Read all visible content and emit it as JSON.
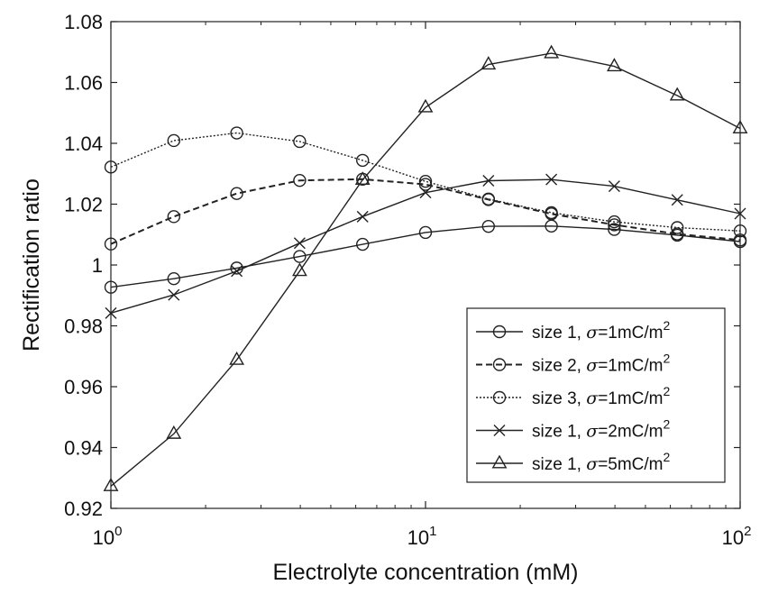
{
  "chart_data": {
    "type": "line",
    "xscale": "log",
    "xlabel": "Electrolyte concentration (mM)",
    "ylabel": "Rectification ratio",
    "xlim": [
      1,
      100
    ],
    "ylim": [
      0.92,
      1.08
    ],
    "x_ticks": [
      {
        "value": 1,
        "base": "10",
        "exp": "0"
      },
      {
        "value": 10,
        "base": "10",
        "exp": "1"
      },
      {
        "value": 100,
        "base": "10",
        "exp": "2"
      }
    ],
    "y_ticks": [
      {
        "value": 0.92,
        "label": "0.92"
      },
      {
        "value": 0.94,
        "label": "0.94"
      },
      {
        "value": 0.96,
        "label": "0.96"
      },
      {
        "value": 0.98,
        "label": "0.98"
      },
      {
        "value": 1.0,
        "label": "1"
      },
      {
        "value": 1.02,
        "label": "1.02"
      },
      {
        "value": 1.04,
        "label": "1.04"
      },
      {
        "value": 1.06,
        "label": "1.06"
      },
      {
        "value": 1.08,
        "label": "1.08"
      }
    ],
    "grid": false,
    "legend_position": "bottom-right",
    "x": [
      1,
      1.585,
      2.512,
      3.981,
      6.31,
      10,
      15.85,
      25.12,
      39.81,
      63.1,
      100
    ],
    "series": [
      {
        "legend": {
          "prefix": "size 1, ",
          "sym": "σ",
          "value": "=1mC/m",
          "sup": "2"
        },
        "marker": "circle",
        "line": "solid",
        "color": "#222222",
        "values": [
          0.9927,
          0.9955,
          0.999,
          1.0028,
          1.0068,
          1.0107,
          1.0127,
          1.0128,
          1.0117,
          1.0098,
          1.0077
        ]
      },
      {
        "legend": {
          "prefix": "size 2, ",
          "sym": "σ",
          "value": "=1mC/m",
          "sup": "2"
        },
        "marker": "circle",
        "line": "dashed",
        "color": "#222222",
        "values": [
          1.0069,
          1.0159,
          1.0235,
          1.0278,
          1.0282,
          1.0265,
          1.0215,
          1.0168,
          1.0132,
          1.0102,
          1.0082
        ]
      },
      {
        "legend": {
          "prefix": "size 3, ",
          "sym": "σ",
          "value": "=1mC/m",
          "sup": "2"
        },
        "marker": "circle",
        "line": "dotted",
        "color": "#222222",
        "values": [
          1.0322,
          1.0409,
          1.0434,
          1.0406,
          1.0344,
          1.0275,
          1.0217,
          1.0172,
          1.0142,
          1.0123,
          1.0112
        ]
      },
      {
        "legend": {
          "prefix": "size 1, ",
          "sym": "σ",
          "value": "=2mC/m",
          "sup": "2"
        },
        "marker": "x",
        "line": "solid",
        "color": "#222222",
        "values": [
          0.9842,
          0.9902,
          0.998,
          1.0072,
          1.0159,
          1.0238,
          1.0277,
          1.0281,
          1.0259,
          1.0214,
          1.0169
        ]
      },
      {
        "legend": {
          "prefix": "size 1, ",
          "sym": "σ",
          "value": "=5mC/m",
          "sup": "2"
        },
        "marker": "triangle",
        "line": "solid",
        "color": "#222222",
        "values": [
          0.9273,
          0.9445,
          0.9688,
          0.998,
          1.028,
          1.0518,
          1.0659,
          1.0696,
          1.0653,
          1.0557,
          1.0449
        ]
      }
    ]
  }
}
